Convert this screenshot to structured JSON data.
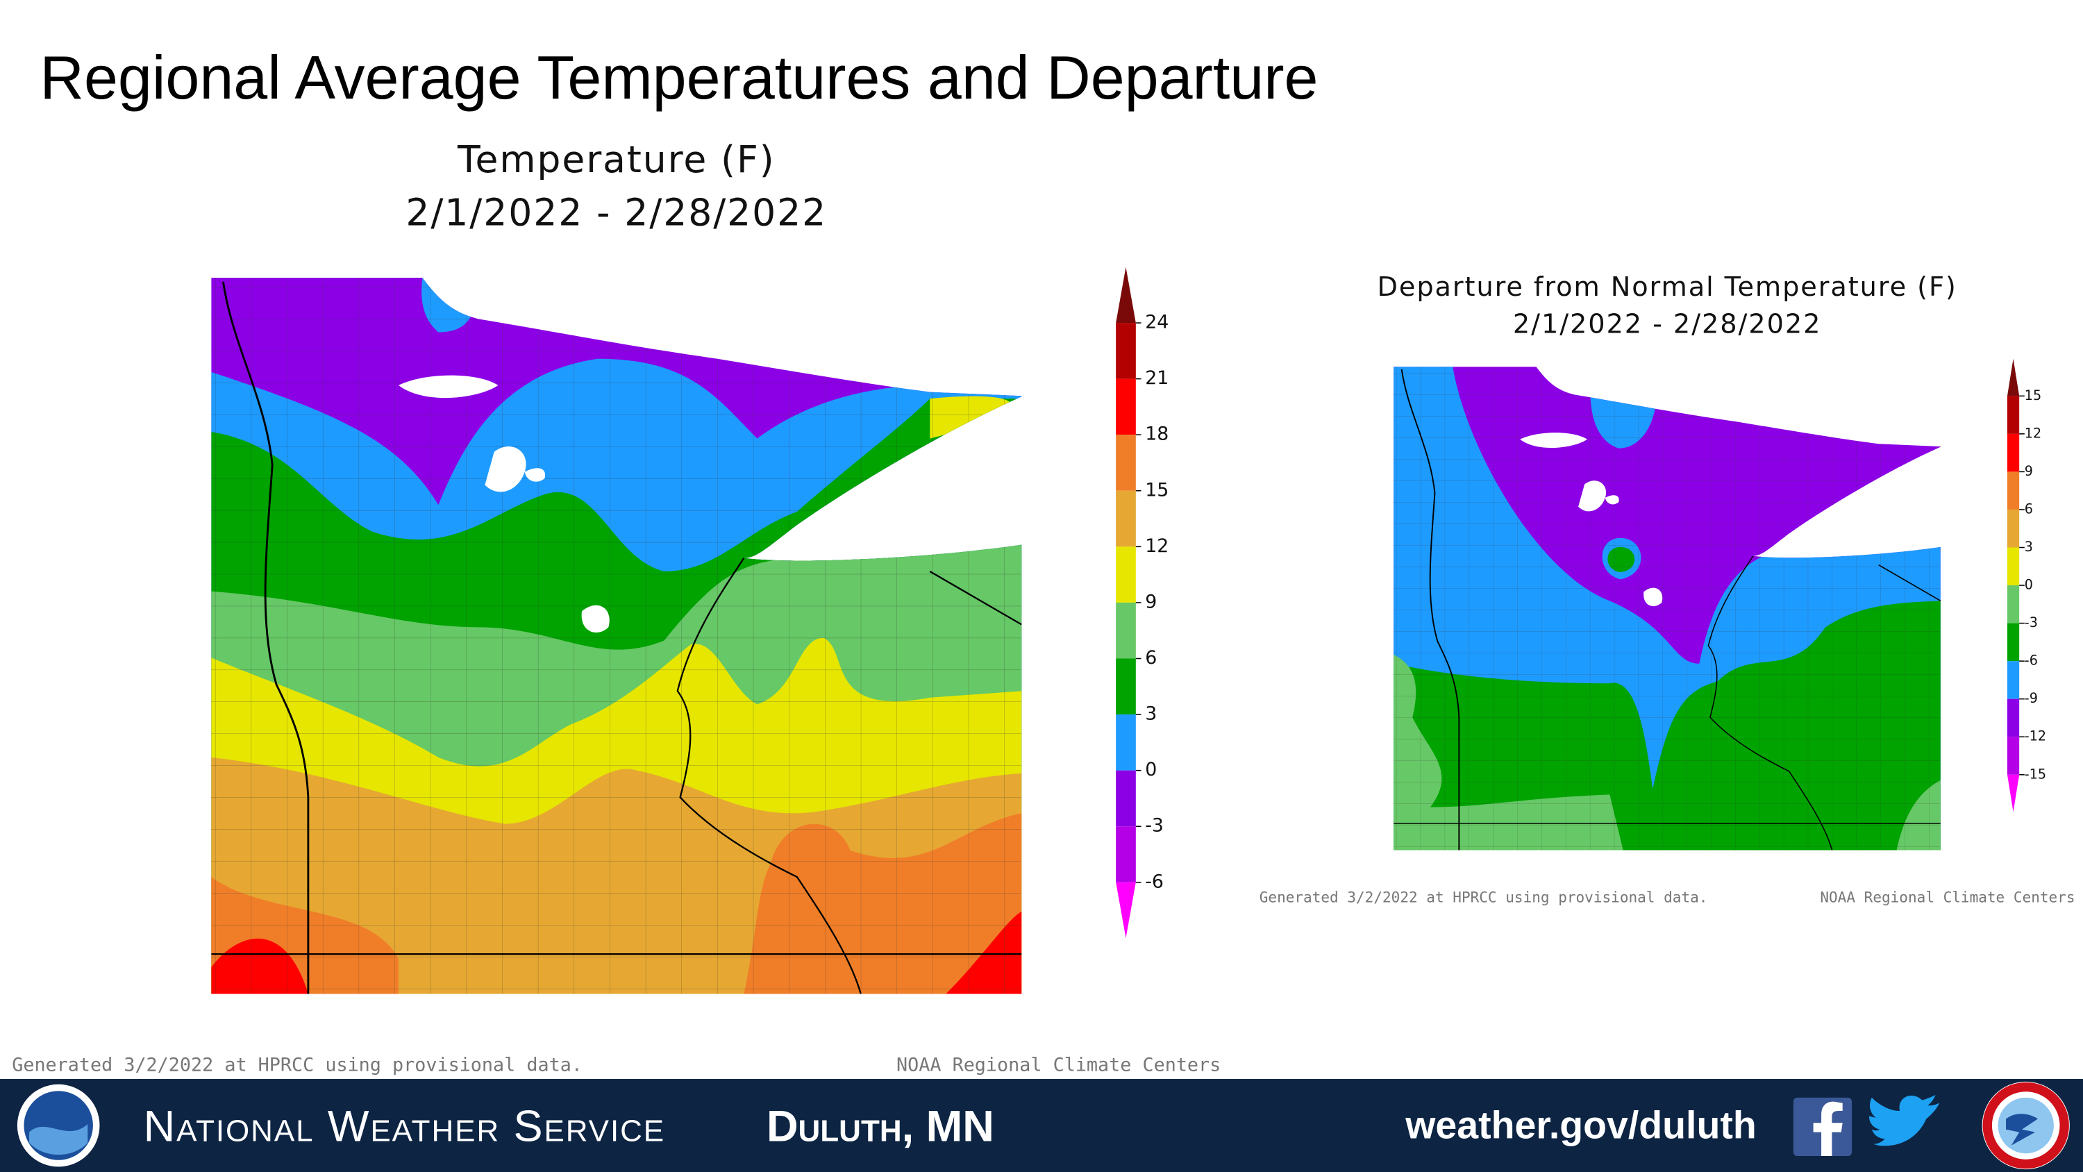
{
  "header": {
    "title": "Regional Average Temperatures and Departure"
  },
  "maps": [
    {
      "title": "Temperature (F)",
      "dates": "2/1/2022 - 2/28/2022",
      "ticks": [
        24,
        21,
        18,
        15,
        12,
        9,
        6,
        3,
        0,
        -3,
        -6
      ],
      "colors": [
        "#7a0a0a",
        "#b30000",
        "#ff0000",
        "#f07e28",
        "#e6a832",
        "#e6e600",
        "#66c866",
        "#00a300",
        "#1e9bff",
        "#8c00e6",
        "#b400e6",
        "#ff00ff"
      ],
      "note_left": "Generated 3/2/2022 at HPRCC using provisional data.",
      "note_right": "NOAA Regional Climate Centers"
    },
    {
      "title": "Departure from Normal Temperature (F)",
      "dates": "2/1/2022 - 2/28/2022",
      "ticks": [
        15,
        12,
        9,
        6,
        3,
        0,
        -3,
        -6,
        -9,
        -12,
        -15
      ],
      "colors": [
        "#7a0a0a",
        "#b30000",
        "#ff0000",
        "#f07e28",
        "#e6a832",
        "#e6e600",
        "#66c866",
        "#00a300",
        "#1e9bff",
        "#8c00e6",
        "#b400e6",
        "#ff00ff"
      ],
      "note_left": "Generated 3/2/2022 at HPRCC using provisional data.",
      "note_right": "NOAA Regional Climate Centers"
    }
  ],
  "footer": {
    "agency": "National Weather Service",
    "office": "Duluth, MN",
    "url": "weather.gov/duluth"
  }
}
